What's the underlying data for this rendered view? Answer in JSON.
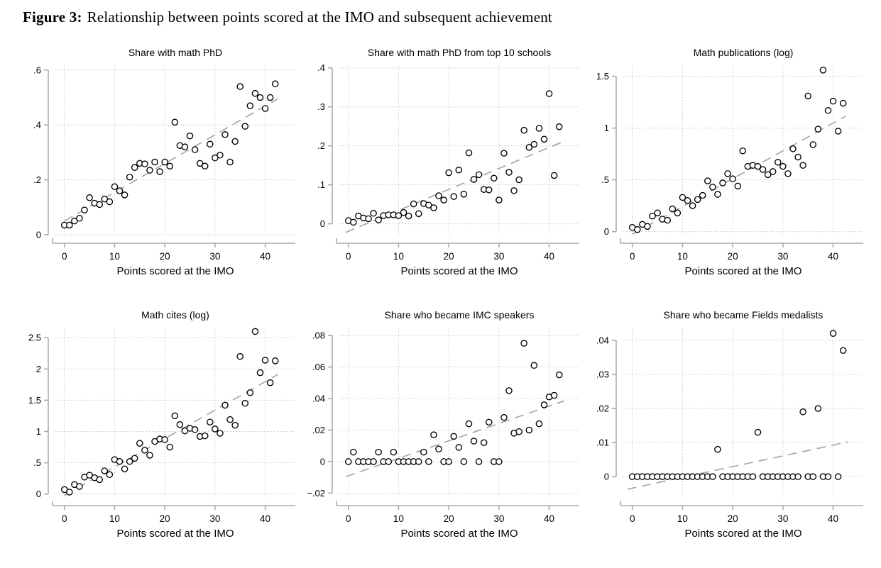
{
  "figure": {
    "label": "Figure 3:",
    "caption": "Relationship between points scored at the IMO and subsequent achievement"
  },
  "style": {
    "marker_color": "#000000",
    "marker_fill": "#ffffff",
    "trend_color": "#a8a8a8",
    "grid_color": "#cfcfcf",
    "axis_color": "#ababab",
    "text_color": "#000000"
  },
  "chart_data": [
    {
      "type": "scatter",
      "title": "Share with math PhD",
      "xlabel": "Points scored at the IMO",
      "x": [
        0,
        1,
        2,
        3,
        4,
        5,
        6,
        7,
        8,
        9,
        10,
        11,
        12,
        13,
        14,
        15,
        16,
        17,
        18,
        19,
        20,
        21,
        22,
        23,
        24,
        25,
        26,
        27,
        28,
        29,
        30,
        31,
        32,
        33,
        34,
        35,
        36,
        37,
        38,
        39,
        40,
        41,
        42
      ],
      "y": [
        0.035,
        0.035,
        0.05,
        0.06,
        0.09,
        0.135,
        0.115,
        0.11,
        0.13,
        0.12,
        0.175,
        0.16,
        0.145,
        0.21,
        0.245,
        0.26,
        0.258,
        0.235,
        0.265,
        0.23,
        0.265,
        0.25,
        0.41,
        0.325,
        0.32,
        0.36,
        0.31,
        0.26,
        0.25,
        0.33,
        0.28,
        0.29,
        0.365,
        0.265,
        0.34,
        0.54,
        0.395,
        0.47,
        0.515,
        0.5,
        0.46,
        0.5,
        0.55
      ],
      "xticks": [
        0,
        10,
        20,
        30,
        40
      ],
      "xlim": [
        -1.8,
        46
      ],
      "yticks": [
        0,
        0.2,
        0.4,
        0.6
      ],
      "ytick_labels": [
        "0",
        ".2",
        ".4",
        ".6"
      ],
      "plot_ylim": [
        0,
        0.615
      ],
      "trend": {
        "x": [
          0,
          42.5
        ],
        "y": [
          0.05,
          0.495
        ]
      },
      "grid": true
    },
    {
      "type": "scatter",
      "title": "Share with math PhD from top 10 schools",
      "xlabel": "Points scored at the IMO",
      "x": [
        0,
        1,
        2,
        3,
        4,
        5,
        6,
        7,
        8,
        9,
        10,
        11,
        12,
        13,
        14,
        15,
        16,
        17,
        18,
        19,
        20,
        21,
        22,
        23,
        24,
        25,
        26,
        27,
        28,
        29,
        30,
        31,
        32,
        33,
        34,
        35,
        36,
        37,
        38,
        39,
        40,
        41,
        42
      ],
      "y": [
        0.008,
        0.004,
        0.02,
        0.015,
        0.013,
        0.027,
        0.01,
        0.021,
        0.023,
        0.023,
        0.021,
        0.029,
        0.02,
        0.051,
        0.026,
        0.052,
        0.048,
        0.041,
        0.072,
        0.061,
        0.131,
        0.07,
        0.138,
        0.076,
        0.182,
        0.114,
        0.126,
        0.088,
        0.087,
        0.117,
        0.061,
        0.181,
        0.132,
        0.085,
        0.113,
        0.24,
        0.196,
        0.204,
        0.245,
        0.217,
        0.334,
        0.124,
        0.249
      ],
      "xticks": [
        0,
        10,
        20,
        30,
        40
      ],
      "xlim": [
        -1.8,
        46
      ],
      "yticks": [
        0,
        0.1,
        0.2,
        0.3,
        0.4
      ],
      "ytick_labels": [
        "0",
        ".1",
        ".2",
        ".3",
        ".4"
      ],
      "plot_ylim": [
        -0.028,
        0.405
      ],
      "trend": {
        "x": [
          -0.5,
          43
        ],
        "y": [
          -0.022,
          0.212
        ]
      },
      "grid": true
    },
    {
      "type": "scatter",
      "title": "Math publications (log)",
      "xlabel": "Points scored at the IMO",
      "x": [
        0,
        1,
        2,
        3,
        4,
        5,
        6,
        7,
        8,
        9,
        10,
        11,
        12,
        13,
        14,
        15,
        16,
        17,
        18,
        19,
        20,
        21,
        22,
        23,
        24,
        25,
        26,
        27,
        28,
        29,
        30,
        31,
        32,
        33,
        34,
        35,
        36,
        37,
        38,
        39,
        40,
        41,
        42
      ],
      "y": [
        0.04,
        0.02,
        0.07,
        0.05,
        0.15,
        0.18,
        0.12,
        0.11,
        0.22,
        0.18,
        0.33,
        0.3,
        0.25,
        0.31,
        0.35,
        0.49,
        0.43,
        0.36,
        0.47,
        0.56,
        0.51,
        0.44,
        0.78,
        0.63,
        0.64,
        0.63,
        0.6,
        0.55,
        0.58,
        0.67,
        0.63,
        0.56,
        0.8,
        0.72,
        0.64,
        1.31,
        0.84,
        0.99,
        1.56,
        1.17,
        1.26,
        0.97,
        1.24
      ],
      "xticks": [
        0,
        10,
        20,
        30,
        40
      ],
      "xlim": [
        -1.8,
        46
      ],
      "yticks": [
        0,
        0.5,
        1,
        1.5
      ],
      "ytick_labels": [
        "0",
        ".5",
        "1",
        "1.5"
      ],
      "plot_ylim": [
        -0.03,
        1.6
      ],
      "trend": {
        "x": [
          0,
          42.5
        ],
        "y": [
          -0.025,
          1.115
        ]
      },
      "grid": true
    },
    {
      "type": "scatter",
      "title": "Math cites (log)",
      "xlabel": "Points scored at the IMO",
      "x": [
        0,
        1,
        2,
        3,
        4,
        5,
        6,
        7,
        8,
        9,
        10,
        11,
        12,
        13,
        14,
        15,
        16,
        17,
        18,
        19,
        20,
        21,
        22,
        23,
        24,
        25,
        26,
        27,
        28,
        29,
        30,
        31,
        32,
        33,
        34,
        35,
        36,
        37,
        38,
        39,
        40,
        41,
        42
      ],
      "y": [
        0.07,
        0.03,
        0.15,
        0.12,
        0.27,
        0.3,
        0.26,
        0.23,
        0.37,
        0.31,
        0.55,
        0.52,
        0.4,
        0.52,
        0.57,
        0.81,
        0.7,
        0.62,
        0.84,
        0.88,
        0.87,
        0.75,
        1.25,
        1.11,
        1.01,
        1.05,
        1.03,
        0.92,
        0.93,
        1.15,
        1.04,
        0.97,
        1.42,
        1.19,
        1.1,
        2.2,
        1.45,
        1.62,
        2.6,
        1.94,
        2.14,
        1.78,
        2.13
      ],
      "xticks": [
        0,
        10,
        20,
        30,
        40
      ],
      "xlim": [
        -1.8,
        46
      ],
      "yticks": [
        0,
        0.5,
        1,
        1.5,
        2,
        2.5
      ],
      "ytick_labels": [
        "0",
        ".5",
        "1",
        "1.5",
        "2",
        "2.5"
      ],
      "plot_ylim": [
        -0.05,
        2.65
      ],
      "trend": {
        "x": [
          0,
          42.5
        ],
        "y": [
          -0.025,
          1.91
        ]
      },
      "grid": true
    },
    {
      "type": "scatter",
      "title": "Share who became IMC speakers",
      "xlabel": "Points scored at the IMO",
      "x": [
        0,
        1,
        2,
        3,
        4,
        5,
        6,
        7,
        8,
        9,
        10,
        11,
        12,
        13,
        14,
        15,
        16,
        17,
        18,
        19,
        20,
        21,
        22,
        23,
        24,
        25,
        26,
        27,
        28,
        29,
        30,
        31,
        32,
        33,
        34,
        35,
        36,
        37,
        38,
        39,
        40,
        41,
        42
      ],
      "y": [
        0,
        0.006,
        0,
        0,
        0,
        0,
        0.006,
        0,
        0,
        0.006,
        0,
        0,
        0,
        0,
        0,
        0.006,
        0,
        0.017,
        0.008,
        0,
        0,
        0.016,
        0.009,
        0,
        0.024,
        0.013,
        0,
        0.012,
        0.025,
        0,
        0,
        0.028,
        0.045,
        0.018,
        0.019,
        0.075,
        0.02,
        0.061,
        0.024,
        0.036,
        0.041,
        0.042,
        0.055
      ],
      "xticks": [
        0,
        10,
        20,
        30,
        40
      ],
      "xlim": [
        -1.8,
        46
      ],
      "yticks": [
        -0.02,
        0,
        0.02,
        0.04,
        0.06,
        0.08
      ],
      "ytick_labels": [
        "−.02",
        "0",
        ".02",
        ".04",
        ".06",
        ".08"
      ],
      "plot_ylim": [
        -0.0225,
        0.0845
      ],
      "trend": {
        "x": [
          -0.5,
          43
        ],
        "y": [
          -0.0095,
          0.0385
        ]
      },
      "grid": true
    },
    {
      "type": "scatter",
      "title": "Share who became Fields medalists",
      "xlabel": "Points scored at the IMO",
      "x": [
        0,
        1,
        2,
        3,
        4,
        5,
        6,
        7,
        8,
        9,
        10,
        11,
        12,
        13,
        14,
        15,
        16,
        17,
        18,
        19,
        20,
        21,
        22,
        23,
        24,
        25,
        26,
        27,
        28,
        29,
        30,
        31,
        32,
        33,
        34,
        35,
        36,
        37,
        38,
        39,
        40,
        41,
        42
      ],
      "y": [
        0,
        0,
        0,
        0,
        0,
        0,
        0,
        0,
        0,
        0,
        0,
        0,
        0,
        0,
        0,
        0,
        0,
        0.008,
        0,
        0,
        0,
        0,
        0,
        0,
        0,
        0.013,
        0,
        0,
        0,
        0,
        0,
        0,
        0,
        0,
        0.019,
        0,
        0,
        0.02,
        0,
        0,
        0.042,
        0,
        0.037
      ],
      "xticks": [
        0,
        10,
        20,
        30,
        40
      ],
      "xlim": [
        -1.8,
        46
      ],
      "yticks": [
        0,
        0.01,
        0.02,
        0.03,
        0.04
      ],
      "ytick_labels": [
        "0",
        ".01",
        ".02",
        ".03",
        ".04"
      ],
      "plot_ylim": [
        -0.006,
        0.0435
      ],
      "trend": {
        "x": [
          -1,
          43
        ],
        "y": [
          -0.0037,
          0.0102
        ]
      },
      "grid": true
    }
  ]
}
